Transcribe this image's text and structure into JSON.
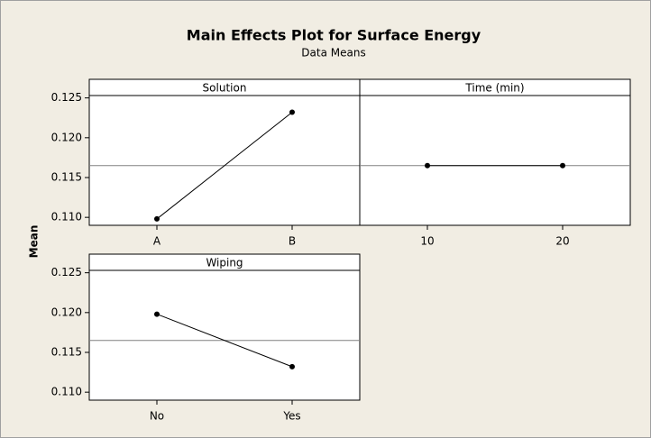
{
  "title": "Main Effects Plot for Surface Energy",
  "subtitle": "Data Means",
  "y_label": "Mean",
  "chart_data": [
    {
      "type": "line",
      "panel_title": "Solution",
      "categories": [
        "A",
        "B"
      ],
      "values": [
        0.1098,
        0.1232
      ],
      "color": "#000000",
      "mean": 0.1165,
      "ylim": [
        0.109,
        0.1253
      ],
      "yticks": [
        {
          "value": 0.11,
          "label": "0.110"
        },
        {
          "value": 0.115,
          "label": "0.115"
        },
        {
          "value": 0.12,
          "label": "0.120"
        },
        {
          "value": 0.125,
          "label": "0.125"
        }
      ]
    },
    {
      "type": "line",
      "panel_title": "Time (min)",
      "categories": [
        "10",
        "20"
      ],
      "values": [
        0.1165,
        0.1165
      ],
      "color": "#000000",
      "mean": 0.1165,
      "ylim": [
        0.109,
        0.1253
      ]
    },
    {
      "type": "line",
      "panel_title": "Wiping",
      "categories": [
        "No",
        "Yes"
      ],
      "values": [
        0.1198,
        0.1132
      ],
      "color": "#000000",
      "mean": 0.1165,
      "ylim": [
        0.109,
        0.1253
      ],
      "yticks": [
        {
          "value": 0.11,
          "label": "0.110"
        },
        {
          "value": 0.115,
          "label": "0.115"
        },
        {
          "value": 0.12,
          "label": "0.120"
        },
        {
          "value": 0.125,
          "label": "0.125"
        }
      ]
    }
  ]
}
